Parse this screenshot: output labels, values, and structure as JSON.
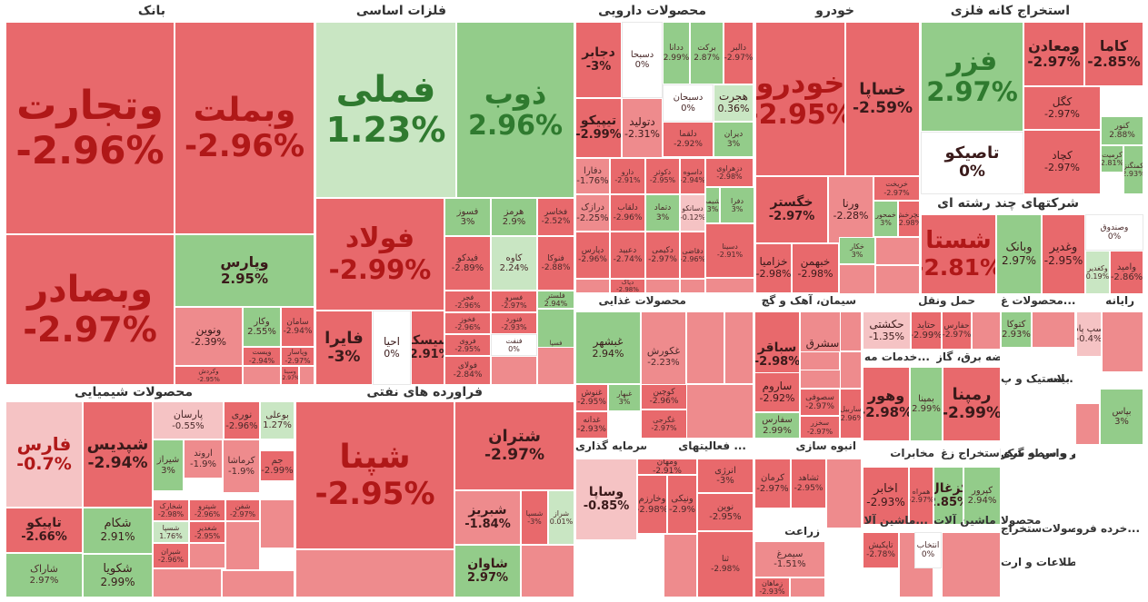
{
  "colors": {
    "neg_strong": "#e8696c",
    "neg_mid": "#ee8b8d",
    "neg_light": "#f5c3c4",
    "zero": "#ffffff",
    "pos_light": "#c9e6c3",
    "pos_mid": "#93cc8a",
    "pos_strong": "#3e9b3e",
    "text_neg": "#b01818",
    "text_pos": "#2f7a2f",
    "text_zero": "#333333"
  },
  "chart_data": {
    "type": "treemap",
    "title": "",
    "sectors": [
      {
        "name": "بانک",
        "tiles": [
          {
            "symbol": "وتجارت",
            "change": "-2.96%"
          },
          {
            "symbol": "وبملت",
            "change": "-2.96%"
          },
          {
            "symbol": "وبصادر",
            "change": "-2.97%"
          },
          {
            "symbol": "وپارس",
            "change": "2.95%"
          },
          {
            "symbol": "ونوین",
            "change": "-2.39%"
          },
          {
            "symbol": "وکار",
            "change": "2.55%"
          },
          {
            "symbol": "سامان",
            "change": "-2.94%"
          },
          {
            "symbol": "وکردش",
            "change": "-2.95%"
          },
          {
            "symbol": "ویست",
            "change": "-2.94%"
          },
          {
            "symbol": "وپاسار",
            "change": "-2.97%"
          },
          {
            "symbol": "وسینا",
            "change": "-2.97%"
          },
          {
            "symbol": "",
            "change": ""
          },
          {
            "symbol": "",
            "change": ""
          }
        ]
      },
      {
        "name": "فلزات اساسی",
        "tiles": [
          {
            "symbol": "فملی",
            "change": "1.23%"
          },
          {
            "symbol": "ذوب",
            "change": "2.96%"
          },
          {
            "symbol": "فولاد",
            "change": "-2.99%"
          },
          {
            "symbol": "فسوز",
            "change": "3%"
          },
          {
            "symbol": "هرمز",
            "change": "2.9%"
          },
          {
            "symbol": "فخاسر",
            "change": "-2.52%"
          },
          {
            "symbol": "فیدکو",
            "change": "-2.89%"
          },
          {
            "symbol": "کاوه",
            "change": "2.24%"
          },
          {
            "symbol": "فنوکا",
            "change": "-2.88%"
          },
          {
            "symbol": "فلستر",
            "change": "2.94%"
          },
          {
            "symbol": "فایرا",
            "change": "-3%"
          },
          {
            "symbol": "احیا",
            "change": "0%"
          },
          {
            "symbol": "سیسکو",
            "change": "-2.91%"
          },
          {
            "symbol": "فجر",
            "change": "-2.96%"
          },
          {
            "symbol": "فخوز",
            "change": "-2.96%"
          },
          {
            "symbol": "فسرو",
            "change": "-2.97%"
          },
          {
            "symbol": "فروی",
            "change": "-2.95%"
          },
          {
            "symbol": "فولای",
            "change": "-2.84%"
          },
          {
            "symbol": "فنورد",
            "change": "-2.93%"
          },
          {
            "symbol": "فنفت",
            "change": "0%"
          },
          {
            "symbol": "فسپا",
            "change": "2.90%"
          },
          {
            "symbol": "",
            "change": ""
          },
          {
            "symbol": "",
            "change": ""
          },
          {
            "symbol": "",
            "change": ""
          }
        ]
      },
      {
        "name": "محصولات دارویی",
        "tiles": [
          {
            "symbol": "دجابر",
            "change": "-3%"
          },
          {
            "symbol": "دسبحا",
            "change": "0%"
          },
          {
            "symbol": "ددانا",
            "change": "2.99%"
          },
          {
            "symbol": "برکت",
            "change": "2.87%"
          },
          {
            "symbol": "دالبر",
            "change": "-2.97%"
          },
          {
            "symbol": "دسبحان",
            "change": "0%"
          },
          {
            "symbol": "هجرت",
            "change": "0.36%"
          },
          {
            "symbol": "تیپیکو",
            "change": "-2.99%"
          },
          {
            "symbol": "دتولید",
            "change": "-2.31%"
          },
          {
            "symbol": "دلقما",
            "change": "-2.92%"
          },
          {
            "symbol": "دیران",
            "change": "3%"
          },
          {
            "symbol": "دفارا",
            "change": "-1.76%"
          },
          {
            "symbol": "دارو",
            "change": "-2.91%"
          },
          {
            "symbol": "دکوثر",
            "change": "-2.95%"
          },
          {
            "symbol": "داسوه",
            "change": "-2.94%"
          },
          {
            "symbol": "دزهراوی",
            "change": "-2.98%"
          },
          {
            "symbol": "درازک",
            "change": "-2.25%"
          },
          {
            "symbol": "دلقاب",
            "change": "-2.96%"
          },
          {
            "symbol": "دتماد",
            "change": "3%"
          },
          {
            "symbol": "دسانکو",
            "change": "-0.12%"
          },
          {
            "symbol": "دشیمی",
            "change": "3%"
          },
          {
            "symbol": "دفرا",
            "change": "3%"
          },
          {
            "symbol": "دپارس",
            "change": "-2.96%"
          },
          {
            "symbol": "دعبید",
            "change": "-2.74%"
          },
          {
            "symbol": "دکیمی",
            "change": "-2.97%"
          },
          {
            "symbol": "دقاضی",
            "change": "-2.96%"
          },
          {
            "symbol": "دسینا",
            "change": "-2.91%"
          },
          {
            "symbol": "دپاک",
            "change": "-2.98%"
          },
          {
            "symbol": "",
            "change": ""
          },
          {
            "symbol": "",
            "change": ""
          },
          {
            "symbol": "",
            "change": ""
          },
          {
            "symbol": "",
            "change": ""
          }
        ]
      },
      {
        "name": "خودرو",
        "tiles": [
          {
            "symbol": "خودرو",
            "change": "-2.95%"
          },
          {
            "symbol": "خساپا",
            "change": "-2.59%"
          },
          {
            "symbol": "خگستر",
            "change": "-2.97%"
          },
          {
            "symbol": "ورنا",
            "change": "-2.28%"
          },
          {
            "symbol": "خزامیا",
            "change": "-2.98%"
          },
          {
            "symbol": "خبهمن",
            "change": "-2.98%"
          },
          {
            "symbol": "خریخت",
            "change": "-2.97%"
          },
          {
            "symbol": "خمحور",
            "change": "3%"
          },
          {
            "symbol": "خچرخش",
            "change": "-2.98%"
          },
          {
            "symbol": "خکار",
            "change": "3%"
          },
          {
            "symbol": "",
            "change": ""
          },
          {
            "symbol": "",
            "change": ""
          },
          {
            "symbol": "",
            "change": ""
          }
        ]
      },
      {
        "name": "استخراج کانه فلزی",
        "tiles": [
          {
            "symbol": "فزر",
            "change": "2.97%"
          },
          {
            "symbol": "ومعادن",
            "change": "-2.97%"
          },
          {
            "symbol": "کاما",
            "change": "-2.85%"
          },
          {
            "symbol": "کگل",
            "change": "-2.97%"
          },
          {
            "symbol": "کنور",
            "change": "2.88%"
          },
          {
            "symbol": "تاصیکو",
            "change": "0%"
          },
          {
            "symbol": "کچاد",
            "change": "-2.97%"
          },
          {
            "symbol": "کرمیت",
            "change": "2.81%"
          },
          {
            "symbol": "کمنگنز",
            "change": "2.93%"
          }
        ]
      },
      {
        "name": "شرکتهای چند رشته ای",
        "tiles": [
          {
            "symbol": "شستا",
            "change": "-2.81%"
          },
          {
            "symbol": "وبانک",
            "change": "2.97%"
          },
          {
            "symbol": "وغدیر",
            "change": "-2.95%"
          },
          {
            "symbol": "وصندوق",
            "change": "0%"
          },
          {
            "symbol": "وکغدیر",
            "change": "0.19%"
          },
          {
            "symbol": "وامید",
            "change": "-2.86%"
          }
        ]
      },
      {
        "name": "محصولات شیمیایی",
        "tiles": [
          {
            "symbol": "فارس",
            "change": "-0.7%"
          },
          {
            "symbol": "شپدیس",
            "change": "-2.94%"
          },
          {
            "symbol": "پارسان",
            "change": "-0.55%"
          },
          {
            "symbol": "نوری",
            "change": "-2.96%"
          },
          {
            "symbol": "بوعلی",
            "change": "1.27%"
          },
          {
            "symbol": "شیراز",
            "change": "3%"
          },
          {
            "symbol": "اروند",
            "change": "-1.9%"
          },
          {
            "symbol": "کرماشا",
            "change": "-1.9%"
          },
          {
            "symbol": "جم",
            "change": "-2.99%"
          },
          {
            "symbol": "شاراک",
            "change": "2.97%"
          },
          {
            "symbol": "تاپیکو",
            "change": "-2.66%"
          },
          {
            "symbol": "شکام",
            "change": "2.91%"
          },
          {
            "symbol": "شکویا",
            "change": "2.99%"
          },
          {
            "symbol": "شخارک",
            "change": "-2.98%"
          },
          {
            "symbol": "شپترو",
            "change": "-2.96%"
          },
          {
            "symbol": "شفن",
            "change": "-2.97%"
          },
          {
            "symbol": "شسپا",
            "change": "1.76%"
          },
          {
            "symbol": "شغدیر",
            "change": "-2.95%"
          },
          {
            "symbol": "شیران",
            "change": "-2.96%"
          },
          {
            "symbol": "",
            "change": ""
          },
          {
            "symbol": "",
            "change": ""
          },
          {
            "symbol": "",
            "change": ""
          },
          {
            "symbol": "",
            "change": ""
          },
          {
            "symbol": "",
            "change": ""
          }
        ]
      },
      {
        "name": "فراورده های نفتی",
        "tiles": [
          {
            "symbol": "شپنا",
            "change": "-2.95%"
          },
          {
            "symbol": "شتران",
            "change": "-2.97%"
          },
          {
            "symbol": "شبریز",
            "change": "-1.84%"
          },
          {
            "symbol": "شسپا",
            "change": "-3%"
          },
          {
            "symbol": "شراز",
            "change": "0.01%"
          },
          {
            "symbol": "شبندر",
            "change": "-2.84%"
          },
          {
            "symbol": "شاوان",
            "change": "2.97%"
          },
          {
            "symbol": "شبهرن",
            "change": "-2.99%"
          },
          {
            "symbol": "شرانل",
            "change": "-2.82%"
          },
          {
            "symbol": "",
            "change": ""
          },
          {
            "symbol": "",
            "change": ""
          }
        ]
      },
      {
        "name": "محصولات غذایی",
        "tiles": [
          {
            "symbol": "غبشهر",
            "change": "2.94%"
          },
          {
            "symbol": "غکورش",
            "change": "-2.23%"
          },
          {
            "symbol": "غنوش",
            "change": "-2.95%"
          },
          {
            "symbol": "غدانه",
            "change": "-2.93%"
          },
          {
            "symbol": "غبهار",
            "change": "3%"
          },
          {
            "symbol": "کوچین",
            "change": "-2.96%"
          },
          {
            "symbol": "غگرجی",
            "change": "-2.97%"
          },
          {
            "symbol": "غمارگ",
            "change": "-2.91%"
          },
          {
            "symbol": "",
            "change": ""
          },
          {
            "symbol": "",
            "change": ""
          },
          {
            "symbol": "",
            "change": ""
          }
        ]
      },
      {
        "name": "سیمان، آهک و گچ",
        "tiles": [
          {
            "symbol": "سباقر",
            "change": "-2.98%"
          },
          {
            "symbol": "سشرق",
            "change": "-2.06%"
          },
          {
            "symbol": "ساروم",
            "change": "-2.92%"
          },
          {
            "symbol": "سصوفی",
            "change": "-2.97%"
          },
          {
            "symbol": "سفارس",
            "change": "2.99%"
          },
          {
            "symbol": "سخزر",
            "change": "-2.97%"
          },
          {
            "symbol": "ساربیل",
            "change": "-2.96%"
          },
          {
            "symbol": "",
            "change": ""
          },
          {
            "symbol": "",
            "change": ""
          },
          {
            "symbol": "",
            "change": ""
          }
        ]
      },
      {
        "name": "حمل ونقل",
        "tiles": [
          {
            "symbol": "حکشتی",
            "change": "-1.35%"
          },
          {
            "symbol": "حتاید",
            "change": "-2.99%"
          },
          {
            "symbol": "حفارس",
            "change": "-2.97%"
          },
          {
            "symbol": "",
            "change": ""
          }
        ]
      },
      {
        "name": "محصولات غ...",
        "tiles": [
          {
            "symbol": "کتوکا",
            "change": "2.93%"
          },
          {
            "symbol": "",
            "change": ""
          }
        ]
      },
      {
        "name": "رایانه",
        "tiles": [
          {
            "symbol": "سپ پاد",
            "change": "-0.4%"
          },
          {
            "symbol": "",
            "change": ""
          }
        ]
      },
      {
        "name": "خدمات مه...",
        "tiles": []
      },
      {
        "name": "عرضه برق، گاز",
        "tiles": [
          {
            "symbol": "وهور",
            "change": "-2.98%"
          },
          {
            "symbol": "بمپنا",
            "change": "2.99%"
          },
          {
            "symbol": "رمپنا",
            "change": "-2.99%"
          },
          {
            "symbol": "",
            "change": ""
          }
        ]
      },
      {
        "name": "لاستیک و پ...",
        "tiles": []
      },
      {
        "name": "بیمه",
        "tiles": [
          {
            "symbol": "بپاس",
            "change": "3%"
          },
          {
            "symbol": "",
            "change": ""
          }
        ]
      },
      {
        "name": "سرمایه گذاری",
        "tiles": [
          {
            "symbol": "وساپا",
            "change": "-0.85%"
          },
          {
            "symbol": "ومهان",
            "change": "-2.91%"
          },
          {
            "symbol": "وخارزم",
            "change": "-2.98%"
          },
          {
            "symbol": "ونیکی",
            "change": "-2.9%"
          },
          {
            "symbol": "وبوعلی",
            "change": "-2.97%"
          },
          {
            "symbol": "",
            "change": ""
          }
        ]
      },
      {
        "name": "فعالیتهای ...",
        "tiles": [
          {
            "symbol": "انرژی",
            "change": "-3%"
          },
          {
            "symbol": "نوین",
            "change": "-2.95%"
          },
          {
            "symbol": "ثنا",
            "change": "-2.98%"
          },
          {
            "symbol": "",
            "change": ""
          }
        ]
      },
      {
        "name": "انبوه سازی",
        "tiles": [
          {
            "symbol": "کرمان",
            "change": "-2.97%"
          },
          {
            "symbol": "ثشاهد",
            "change": "-2.95%"
          },
          {
            "symbol": "",
            "change": ""
          }
        ]
      },
      {
        "name": "زراعت",
        "tiles": [
          {
            "symbol": "سیمرغ",
            "change": "-1.51%"
          },
          {
            "symbol": "زماهان",
            "change": "-2.93%"
          },
          {
            "symbol": "",
            "change": ""
          }
        ]
      },
      {
        "name": "مخابرات",
        "tiles": [
          {
            "symbol": "اخابر",
            "change": "-2.93%"
          },
          {
            "symbol": "همراه",
            "change": "-2.97%"
          }
        ]
      },
      {
        "name": "استخراج زغ...",
        "tiles": [
          {
            "symbol": "کزغال",
            "change": "2.85%"
          },
          {
            "symbol": "کپرور",
            "change": "2.94%"
          }
        ]
      },
      {
        "name": "ماشین آلا...",
        "tiles": [
          {
            "symbol": "تاپکیش",
            "change": "-2.78%"
          },
          {
            "symbol": "",
            "change": ""
          }
        ]
      },
      {
        "name": "ماشین آلات",
        "tiles": [
          {
            "symbol": "انتخاب",
            "change": "0%"
          },
          {
            "symbol": "",
            "change": ""
          }
        ]
      },
      {
        "name": "محصولا...",
        "tiles": []
      },
      {
        "name": "سایر واسطه گری...",
        "tiles": []
      },
      {
        "name": "قند و شکر",
        "tiles": []
      },
      {
        "name": "کاشی و س...",
        "tiles": []
      },
      {
        "name": "خرده فرو...",
        "tiles": []
      },
      {
        "name": "محصولات ...",
        "tiles": []
      },
      {
        "name": "استخراج ...",
        "tiles": []
      },
      {
        "name": "اطلاعات و ارت...",
        "tiles": []
      }
    ]
  }
}
